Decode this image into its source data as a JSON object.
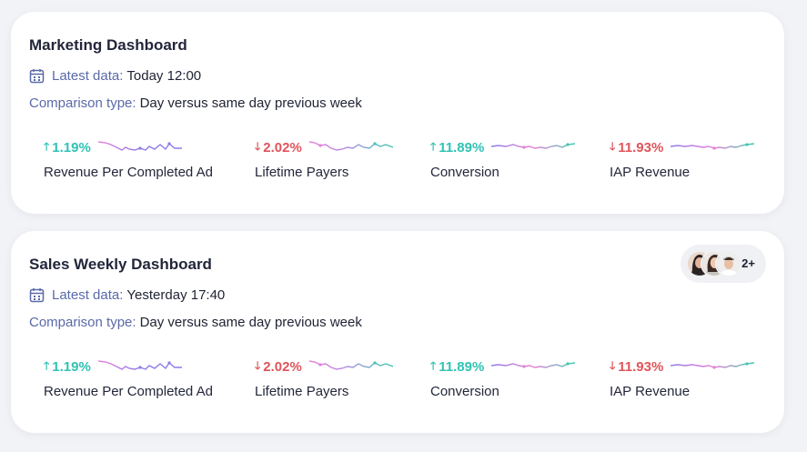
{
  "dashboards": [
    {
      "title": "Marketing Dashboard",
      "latest_label": "Latest data:",
      "latest_value": "Today 12:00",
      "comparison_label": "Comparison type:",
      "comparison_value": "Day versus same day previous week",
      "metrics": [
        {
          "change": "1.19%",
          "direction": "up",
          "name": "Revenue Per Completed Ad"
        },
        {
          "change": "2.02%",
          "direction": "down",
          "name": "Lifetime Payers"
        },
        {
          "change": "11.89%",
          "direction": "up",
          "name": "Conversion"
        },
        {
          "change": "11.93%",
          "direction": "down",
          "name": "IAP Revenue"
        }
      ]
    },
    {
      "title": "Sales Weekly Dashboard",
      "latest_label": "Latest data:",
      "latest_value": "Yesterday 17:40",
      "comparison_label": "Comparison type:",
      "comparison_value": "Day versus same day previous week",
      "collaborators": {
        "more_count": "2+"
      },
      "metrics": [
        {
          "change": "1.19%",
          "direction": "up",
          "name": "Revenue Per Completed Ad"
        },
        {
          "change": "2.02%",
          "direction": "down",
          "name": "Lifetime Payers"
        },
        {
          "change": "11.89%",
          "direction": "up",
          "name": "Conversion"
        },
        {
          "change": "11.93%",
          "direction": "down",
          "name": "IAP Revenue"
        }
      ]
    }
  ],
  "colors": {
    "up": "#2fc3b4",
    "down": "#e0545b",
    "label": "#5a6aa8",
    "spark_purple": "#8f7ae8",
    "spark_pink": "#e67fd8",
    "spark_teal": "#3ec9b0"
  },
  "icons": {
    "calendar": "calendar-icon",
    "arrow_up": "arrow-up-icon",
    "arrow_down": "arrow-down-icon"
  }
}
